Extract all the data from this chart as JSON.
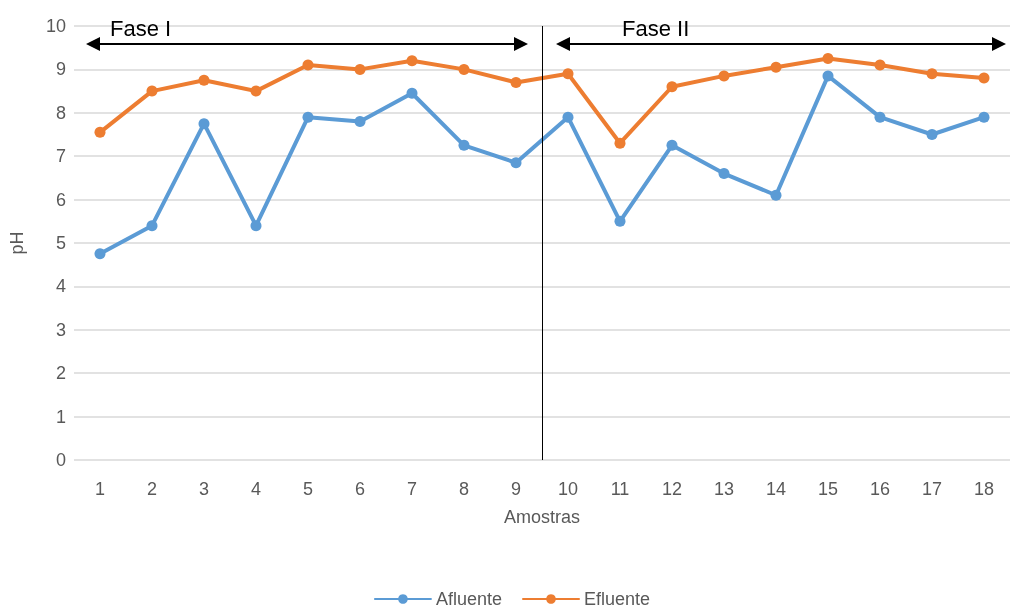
{
  "chart_data": {
    "type": "line",
    "xlabel": "Amostras",
    "ylabel": "pH",
    "x": [
      1,
      2,
      3,
      4,
      5,
      6,
      7,
      8,
      9,
      10,
      11,
      12,
      13,
      14,
      15,
      16,
      17,
      18
    ],
    "series": [
      {
        "name": "Afluente",
        "color": "#5b9bd5",
        "values": [
          4.75,
          5.4,
          7.75,
          5.4,
          7.9,
          7.8,
          8.45,
          7.25,
          6.85,
          7.9,
          5.5,
          7.25,
          6.6,
          6.1,
          8.85,
          7.9,
          7.5,
          7.9
        ]
      },
      {
        "name": "Efluente",
        "color": "#ed7d31",
        "values": [
          7.55,
          8.5,
          8.75,
          8.5,
          9.1,
          9.0,
          9.2,
          9.0,
          8.7,
          8.9,
          7.3,
          8.6,
          8.85,
          9.05,
          9.25,
          9.1,
          8.9,
          8.8
        ]
      }
    ],
    "xlim": [
      0.5,
      18.5
    ],
    "xticks": [
      1,
      2,
      3,
      4,
      5,
      6,
      7,
      8,
      9,
      10,
      11,
      12,
      13,
      14,
      15,
      16,
      17,
      18
    ],
    "ylim": [
      0,
      10
    ],
    "yticks": [
      0,
      1,
      2,
      3,
      4,
      5,
      6,
      7,
      8,
      9,
      10
    ],
    "ref_lines": [
      {
        "axis": "x",
        "value": 9.5,
        "color": "#000000"
      }
    ],
    "annotations": [
      "Fase I",
      "Fase II"
    ],
    "grid": "y",
    "legend": "bottom",
    "marker": "circle",
    "line_style": "solid"
  }
}
